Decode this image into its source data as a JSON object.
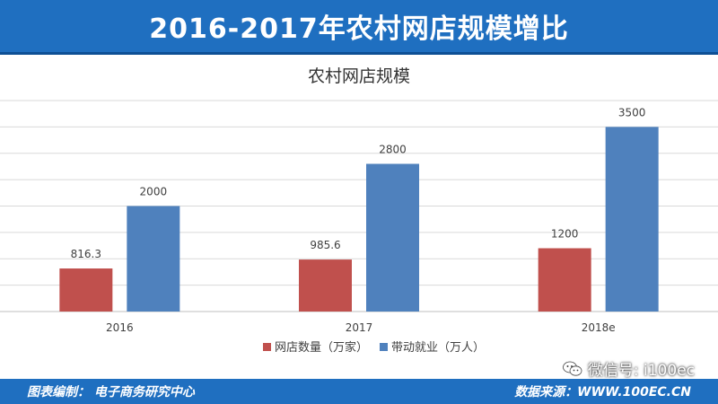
{
  "header": {
    "title": "2016-2017年农村网店规模增比"
  },
  "chart_data": {
    "type": "bar",
    "title": "农村网店规模",
    "categories": [
      "2016",
      "2017",
      "2018e"
    ],
    "series": [
      {
        "name": "网店数量（万家）",
        "values": [
          816.3,
          985.6,
          1200
        ],
        "labels": [
          "816.3",
          "985.6",
          "1200"
        ],
        "color": "#c0504d"
      },
      {
        "name": "带动就业（万人）",
        "values": [
          2000,
          2800,
          3500
        ],
        "labels": [
          "2000",
          "2800",
          "3500"
        ],
        "color": "#4f81bd"
      }
    ],
    "ylim": [
      0,
      4000
    ],
    "grid": true,
    "legend": "bottom"
  },
  "footer": {
    "left": "图表编制：  电子商务研究中心",
    "right": "数据来源：WWW.100EC.CN"
  },
  "wechat": {
    "text": "微信号: i100ec"
  }
}
